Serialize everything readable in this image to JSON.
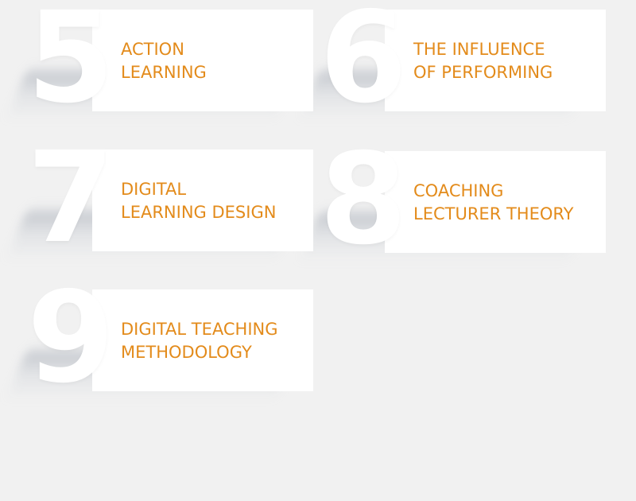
{
  "items": [
    {
      "number": "5",
      "line1": "ACTION",
      "line2": "LEARNING"
    },
    {
      "number": "6",
      "line1": "THE INFLUENCE",
      "line2": "OF PERFORMING"
    },
    {
      "number": "7",
      "line1": "DIGITAL",
      "line2": "LEARNING DESIGN"
    },
    {
      "number": "8",
      "line1": "COACHING",
      "line2": "LECTURER THEORY"
    },
    {
      "number": "9",
      "line1": "DIGITAL TEACHING",
      "line2": "METHODOLOGY"
    }
  ],
  "colors": {
    "background": "#f1f1f1",
    "panel": "#ffffff",
    "accent": "#e38b1b"
  }
}
